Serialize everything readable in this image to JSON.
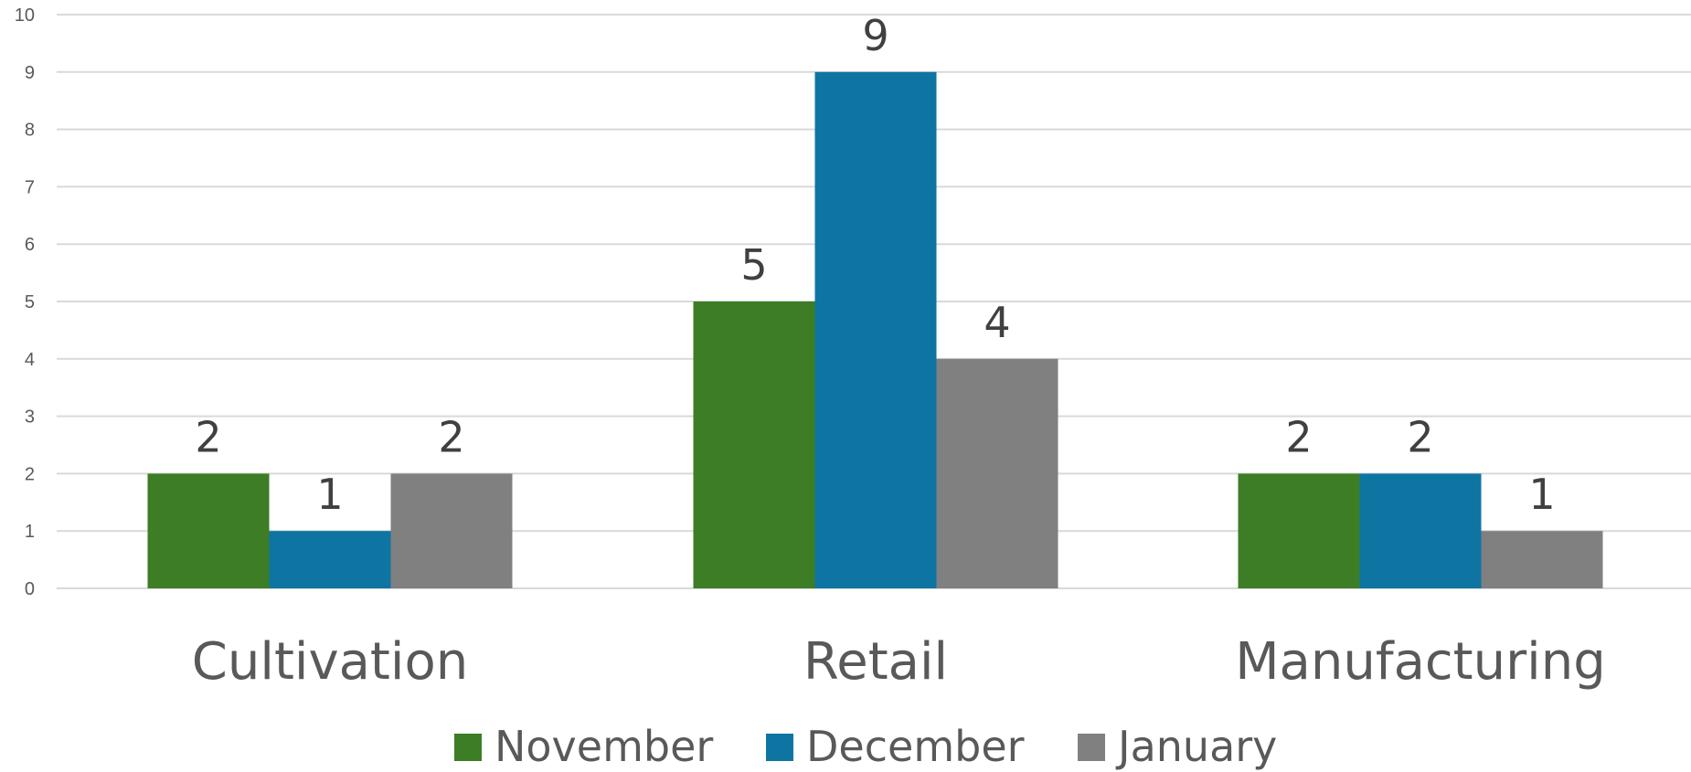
{
  "chart_data": {
    "type": "bar",
    "categories": [
      "Cultivation",
      "Retail",
      "Manufacturing"
    ],
    "series": [
      {
        "name": "November",
        "values": [
          2,
          5,
          2
        ],
        "color": "#3c7d26"
      },
      {
        "name": "December",
        "values": [
          1,
          9,
          2
        ],
        "color": "#0e75a3"
      },
      {
        "name": "January",
        "values": [
          2,
          4,
          1
        ],
        "color": "#808080"
      }
    ],
    "y_ticks": [
      "0",
      "1",
      "2",
      "3",
      "4",
      "5",
      "6",
      "7",
      "8",
      "9",
      "10"
    ],
    "ylim": [
      0,
      10
    ],
    "grid": true,
    "legend_position": "bottom",
    "data_labels": true,
    "title": "",
    "xlabel": "",
    "ylabel": ""
  }
}
